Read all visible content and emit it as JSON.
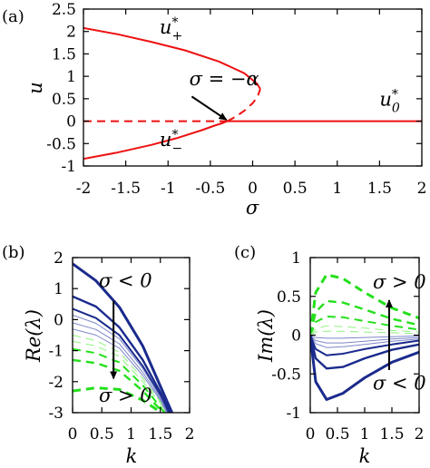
{
  "colors": {
    "red": "#ee1111",
    "navy": "#1a2a8c",
    "light_blue": "#7d87c9",
    "green": "#22e01a",
    "light_green": "#8ff27f"
  },
  "chart_data": [
    {
      "panel": "(a)",
      "type": "line",
      "xlabel": "σ",
      "ylabel": "u",
      "xlim": [
        -2,
        2
      ],
      "ylim": [
        -1,
        2.5
      ],
      "xticks": [
        "-2",
        "-1.5",
        "-1",
        "-0.5",
        "0",
        "0.5",
        "1",
        "1.5",
        "2"
      ],
      "yticks": [
        "-1",
        "-0.5",
        "0",
        "0.5",
        "1",
        "1.5",
        "2",
        "2.5"
      ],
      "series": [
        {
          "label": "u₊*",
          "style": "solid",
          "color": "#ee1111",
          "x": [
            -2.0,
            -1.6,
            -1.2,
            -0.8,
            -0.4,
            -0.1,
            0.05,
            0.09
          ],
          "y": [
            2.08,
            1.94,
            1.77,
            1.58,
            1.33,
            1.07,
            0.84,
            0.72
          ]
        },
        {
          "label": "u₋*",
          "style": "solid",
          "color": "#ee1111",
          "x": [
            -2.0,
            -1.6,
            -1.2,
            -0.9,
            -0.6,
            -0.45,
            -0.35,
            -0.3
          ],
          "y": [
            -0.84,
            -0.7,
            -0.53,
            -0.38,
            -0.2,
            -0.1,
            -0.04,
            0.0
          ]
        },
        {
          "label": "",
          "style": "dashed",
          "color": "#ee1111",
          "x": [
            -0.3,
            -0.2,
            -0.1,
            0.0,
            0.06,
            0.09
          ],
          "y": [
            0.0,
            0.1,
            0.23,
            0.4,
            0.55,
            0.72
          ]
        },
        {
          "label": "",
          "style": "dashed",
          "color": "#ee1111",
          "x": [
            -2.0,
            -0.3
          ],
          "y": [
            0.0,
            0.0
          ]
        },
        {
          "label": "u₀*",
          "style": "solid",
          "color": "#ee1111",
          "x": [
            -0.3,
            2.0
          ],
          "y": [
            0.0,
            0.0
          ]
        }
      ],
      "annotations": [
        {
          "text": "σ = −α",
          "x": -0.75,
          "y": 0.8
        },
        {
          "arrow_from": [
            -0.72,
            0.55
          ],
          "arrow_to": [
            -0.31,
            0.03
          ]
        }
      ],
      "curve_labels": [
        {
          "text": "u",
          "sup": "*",
          "sub": "+",
          "x": -1.1,
          "y": 1.95
        },
        {
          "text": "u",
          "sup": "*",
          "sub": "−",
          "x": -1.1,
          "y": -0.55
        },
        {
          "text": "u",
          "sup": "*",
          "sub": "0",
          "x": 1.5,
          "y": 0.35
        }
      ]
    },
    {
      "panel": "(b)",
      "type": "line",
      "xlabel": "k",
      "ylabel": "Re(λ)",
      "xlim": [
        0,
        2
      ],
      "ylim": [
        -3,
        2
      ],
      "xticks": [
        "0",
        "0.5",
        "1",
        "1.5",
        "2"
      ],
      "yticks": [
        "-3",
        "-2",
        "-1",
        "0",
        "1",
        "2"
      ],
      "series": [
        {
          "style": "solid",
          "color": "#1a2a8c",
          "width": 3,
          "x": [
            0,
            0.4,
            0.8,
            1.2,
            1.5,
            1.7
          ],
          "y": [
            1.8,
            1.25,
            0.4,
            -0.85,
            -2.15,
            -3.0
          ]
        },
        {
          "style": "solid",
          "color": "#1a2a8c",
          "width": 2.4,
          "x": [
            0,
            0.4,
            0.8,
            1.2,
            1.5,
            1.66
          ],
          "y": [
            0.75,
            0.42,
            -0.25,
            -1.3,
            -2.35,
            -3.0
          ]
        },
        {
          "style": "solid",
          "color": "#1a2a8c",
          "width": 2,
          "x": [
            0,
            0.4,
            0.8,
            1.2,
            1.5,
            1.63
          ],
          "y": [
            0.35,
            0.05,
            -0.5,
            -1.5,
            -2.45,
            -3.0
          ]
        },
        {
          "style": "solid",
          "color": "#7d87c9",
          "width": 1,
          "x": [
            0,
            0.4,
            0.8,
            1.2,
            1.5,
            1.62
          ],
          "y": [
            0.15,
            -0.12,
            -0.62,
            -1.58,
            -2.5,
            -3.0
          ]
        },
        {
          "style": "solid",
          "color": "#7d87c9",
          "width": 1,
          "x": [
            0,
            0.4,
            0.8,
            1.2,
            1.5,
            1.61
          ],
          "y": [
            -0.1,
            -0.32,
            -0.78,
            -1.7,
            -2.55,
            -3.0
          ]
        },
        {
          "style": "solid",
          "color": "#7d87c9",
          "width": 1,
          "x": [
            0,
            0.4,
            0.8,
            1.2,
            1.5,
            1.6
          ],
          "y": [
            -0.3,
            -0.5,
            -0.92,
            -1.8,
            -2.6,
            -3.0
          ]
        },
        {
          "style": "dashed",
          "color": "#8ff27f",
          "width": 1,
          "x": [
            0,
            0.4,
            0.8,
            1.2,
            1.5,
            1.59
          ],
          "y": [
            -0.5,
            -0.68,
            -1.05,
            -1.9,
            -2.65,
            -3.0
          ]
        },
        {
          "style": "dashed",
          "color": "#8ff27f",
          "width": 1,
          "x": [
            0,
            0.4,
            0.8,
            1.2,
            1.5,
            1.58
          ],
          "y": [
            -0.7,
            -0.85,
            -1.18,
            -2.0,
            -2.7,
            -3.0
          ]
        },
        {
          "style": "dashed",
          "color": "#22e01a",
          "width": 2,
          "x": [
            0,
            0.4,
            0.8,
            1.2,
            1.45,
            1.57
          ],
          "y": [
            -0.95,
            -1.08,
            -1.38,
            -2.12,
            -2.7,
            -3.0
          ]
        },
        {
          "style": "dashed",
          "color": "#22e01a",
          "width": 2.4,
          "x": [
            0,
            0.4,
            0.8,
            1.2,
            1.45,
            1.56
          ],
          "y": [
            -1.3,
            -1.4,
            -1.65,
            -2.3,
            -2.8,
            -3.0
          ]
        },
        {
          "style": "dashed",
          "color": "#22e01a",
          "width": 3,
          "x": [
            0,
            0.4,
            0.8,
            1.2,
            1.4,
            1.5
          ],
          "y": [
            -2.3,
            -2.2,
            -2.25,
            -2.6,
            -2.85,
            -3.0
          ]
        }
      ],
      "annotations": [
        {
          "text": "σ < 0",
          "x": 0.45,
          "y": 1.05
        },
        {
          "text": "σ > 0",
          "x": 0.45,
          "y": -2.65
        },
        {
          "arrow_from": [
            0.7,
            0.6
          ],
          "arrow_to": [
            0.7,
            -1.9
          ]
        }
      ]
    },
    {
      "panel": "(c)",
      "type": "line",
      "xlabel": "k",
      "ylabel": "Im(λ)",
      "xlim": [
        0,
        2
      ],
      "ylim": [
        -1,
        1
      ],
      "xticks": [
        "0",
        "0.5",
        "1",
        "1.5",
        "2"
      ],
      "yticks": [
        "-1",
        "-0.5",
        "0",
        "0.5",
        "1"
      ],
      "series": [
        {
          "style": "dashed",
          "color": "#22e01a",
          "width": 3,
          "x": [
            0,
            0.1,
            0.3,
            0.6,
            1.0,
            1.5,
            2.0
          ],
          "y": [
            0.0,
            0.55,
            0.78,
            0.73,
            0.55,
            0.35,
            0.22
          ]
        },
        {
          "style": "dashed",
          "color": "#22e01a",
          "width": 2.4,
          "x": [
            0,
            0.1,
            0.3,
            0.6,
            1.0,
            1.5,
            2.0
          ],
          "y": [
            0.0,
            0.3,
            0.44,
            0.42,
            0.33,
            0.21,
            0.13
          ]
        },
        {
          "style": "dashed",
          "color": "#22e01a",
          "width": 2,
          "x": [
            0,
            0.1,
            0.3,
            0.6,
            1.0,
            1.5,
            2.0
          ],
          "y": [
            0.0,
            0.17,
            0.24,
            0.23,
            0.18,
            0.12,
            0.07
          ]
        },
        {
          "style": "dashed",
          "color": "#8ff27f",
          "width": 1,
          "x": [
            0,
            0.1,
            0.3,
            0.6,
            1.0,
            1.5,
            2.0
          ],
          "y": [
            0.0,
            0.08,
            0.12,
            0.11,
            0.09,
            0.06,
            0.04
          ]
        },
        {
          "style": "dashed",
          "color": "#8ff27f",
          "width": 1,
          "x": [
            0,
            0.1,
            0.3,
            0.6,
            1.0,
            1.5,
            2.0
          ],
          "y": [
            0.0,
            0.04,
            0.05,
            0.05,
            0.04,
            0.03,
            0.02
          ]
        },
        {
          "style": "solid",
          "color": "#7d87c9",
          "width": 1,
          "x": [
            0,
            0.1,
            0.3,
            0.6,
            1.0,
            1.5,
            2.0
          ],
          "y": [
            0.0,
            -0.03,
            -0.04,
            -0.04,
            -0.03,
            -0.02,
            -0.01
          ]
        },
        {
          "style": "solid",
          "color": "#7d87c9",
          "width": 1,
          "x": [
            0,
            0.1,
            0.3,
            0.6,
            1.0,
            1.5,
            2.0
          ],
          "y": [
            0.0,
            -0.07,
            -0.1,
            -0.1,
            -0.08,
            -0.05,
            -0.03
          ]
        },
        {
          "style": "solid",
          "color": "#7d87c9",
          "width": 1,
          "x": [
            0,
            0.1,
            0.3,
            0.6,
            1.0,
            1.5,
            2.0
          ],
          "y": [
            0.0,
            -0.11,
            -0.16,
            -0.15,
            -0.12,
            -0.08,
            -0.05
          ]
        },
        {
          "style": "solid",
          "color": "#1a2a8c",
          "width": 2,
          "x": [
            0,
            0.1,
            0.3,
            0.6,
            1.0,
            1.5,
            2.0
          ],
          "y": [
            0.0,
            -0.18,
            -0.26,
            -0.24,
            -0.18,
            -0.12,
            -0.07
          ]
        },
        {
          "style": "solid",
          "color": "#1a2a8c",
          "width": 2.4,
          "x": [
            0,
            0.1,
            0.3,
            0.6,
            1.0,
            1.5,
            2.0
          ],
          "y": [
            0.0,
            -0.3,
            -0.43,
            -0.41,
            -0.3,
            -0.19,
            -0.12
          ]
        },
        {
          "style": "solid",
          "color": "#1a2a8c",
          "width": 3,
          "x": [
            0,
            0.1,
            0.3,
            0.6,
            1.0,
            1.5,
            2.0
          ],
          "y": [
            0.0,
            -0.6,
            -0.83,
            -0.75,
            -0.55,
            -0.35,
            -0.22
          ]
        }
      ],
      "annotations": [
        {
          "text": "σ > 0",
          "x": 1.15,
          "y": 0.6
        },
        {
          "text": "σ < 0",
          "x": 1.15,
          "y": -0.7
        },
        {
          "arrow_from": [
            1.45,
            -0.45
          ],
          "arrow_to": [
            1.45,
            0.45
          ]
        }
      ]
    }
  ]
}
